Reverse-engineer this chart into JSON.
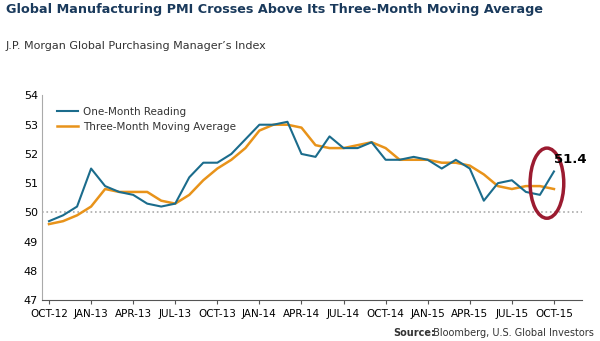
{
  "title": "Global Manufacturing PMI Crosses Above Its Three-Month Moving Average",
  "subtitle": "J.P. Morgan Global Purchasing Manager’s Index",
  "source_label": "Source:",
  "source_text": " Bloomberg, U.S. Global Investors",
  "legend_line1": "One-Month Reading",
  "legend_line2": "Three-Month Moving Average",
  "ylim": [
    47,
    54
  ],
  "yticks": [
    47,
    48,
    49,
    50,
    51,
    52,
    53,
    54
  ],
  "dotted_line_y": 50,
  "annotation_value": "51.4",
  "line_color_blue": "#1b6c8c",
  "line_color_orange": "#e8931a",
  "circle_color": "#9b1b30",
  "title_color": "#1a3a5c",
  "bg_color": "#ffffff",
  "xtick_labels": [
    "OCT-12",
    "JAN-13",
    "APR-13",
    "JUL-13",
    "OCT-13",
    "JAN-14",
    "APR-14",
    "JUL-14",
    "OCT-14",
    "JAN-15",
    "APR-15",
    "JUL-15",
    "OCT-15"
  ],
  "one_month": [
    49.7,
    49.9,
    50.2,
    51.5,
    50.9,
    50.7,
    50.6,
    50.3,
    50.2,
    50.3,
    51.2,
    51.7,
    51.7,
    52.0,
    52.5,
    53.0,
    53.0,
    53.1,
    52.0,
    51.9,
    52.6,
    52.2,
    52.2,
    52.4,
    51.8,
    51.8,
    51.9,
    51.8,
    51.5,
    51.8,
    51.5,
    50.4,
    51.0,
    51.1,
    50.7,
    50.6,
    51.4
  ],
  "three_month": [
    49.6,
    49.7,
    49.9,
    50.2,
    50.8,
    50.7,
    50.7,
    50.7,
    50.4,
    50.3,
    50.6,
    51.1,
    51.5,
    51.8,
    52.2,
    52.8,
    53.0,
    53.0,
    52.9,
    52.3,
    52.2,
    52.2,
    52.3,
    52.4,
    52.2,
    51.8,
    51.8,
    51.8,
    51.7,
    51.7,
    51.6,
    51.3,
    50.9,
    50.8,
    50.9,
    50.9,
    50.8
  ],
  "x_tick_positions": [
    0,
    3,
    6,
    9,
    12,
    15,
    18,
    21,
    24,
    27,
    30,
    33,
    36
  ]
}
